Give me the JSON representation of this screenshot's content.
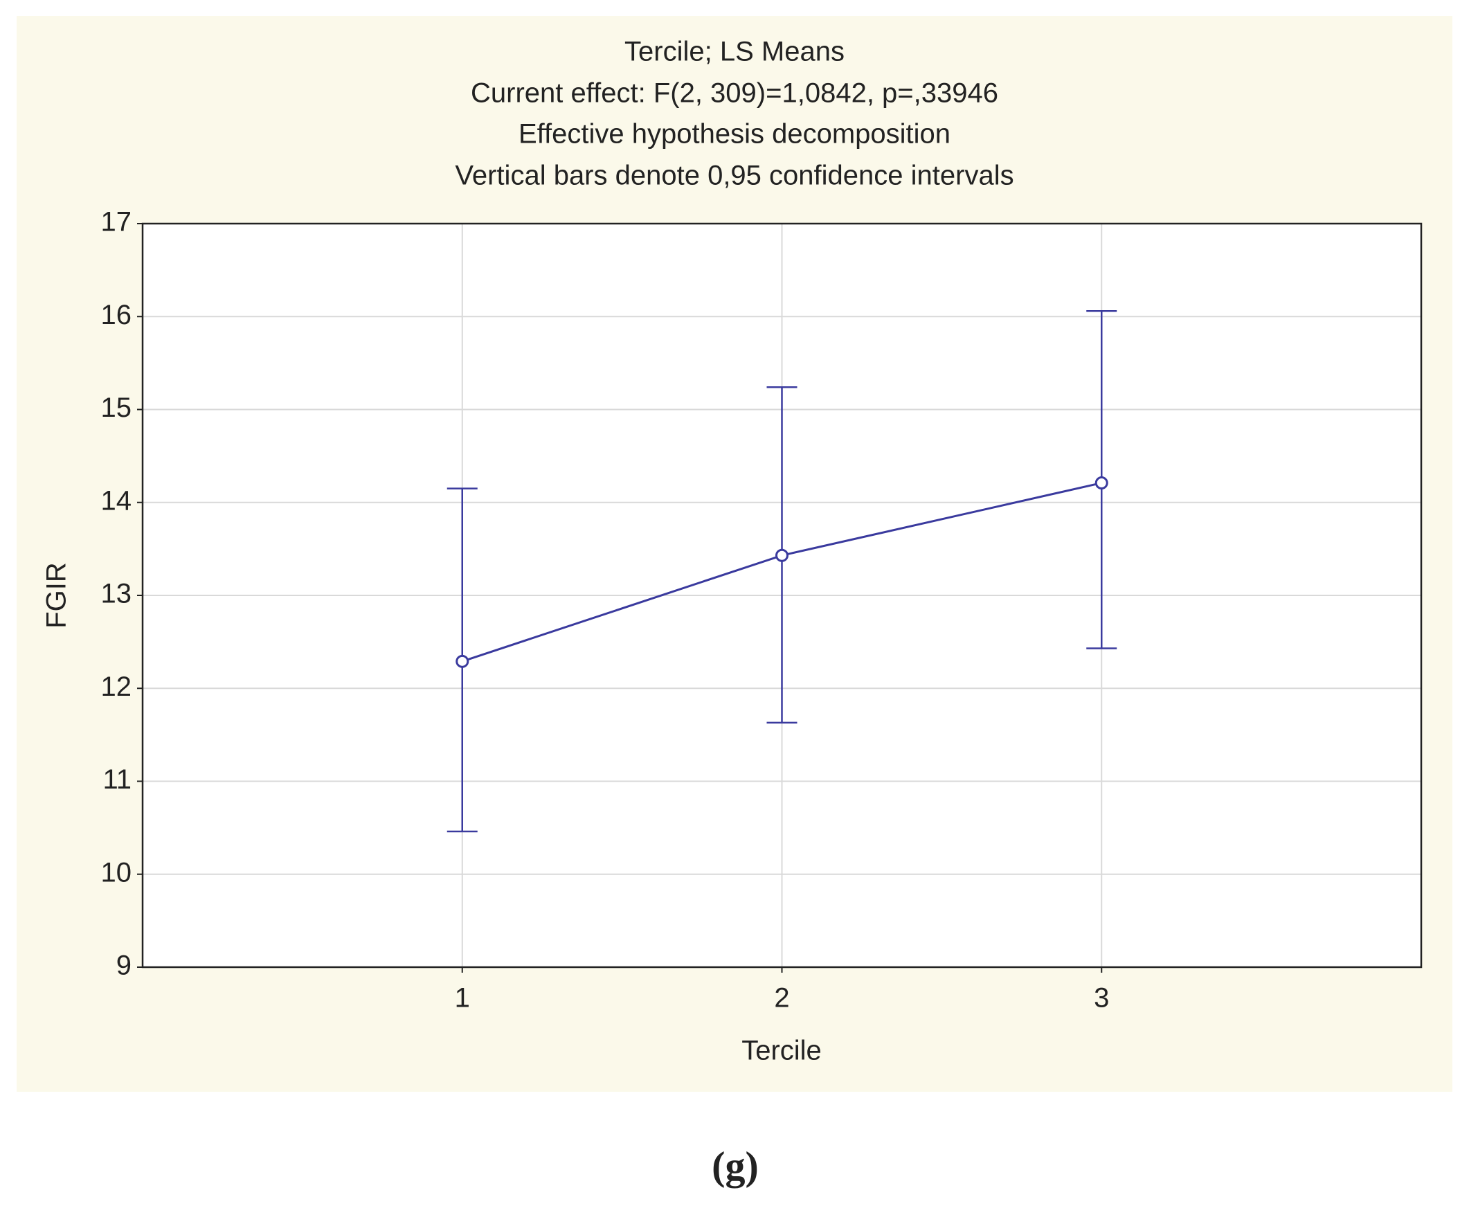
{
  "chart_data": {
    "type": "line",
    "title": "Tercile; LS Means",
    "subtitle": [
      "Current effect: F(2, 309)=1,0842, p=,33946",
      "Effective hypothesis decomposition",
      "Vertical bars denote 0,95 confidence intervals"
    ],
    "xlabel": "Tercile",
    "ylabel": "FGIR",
    "x": [
      1,
      2,
      3
    ],
    "series": [
      {
        "color": "#3a3a9e",
        "values": [
          12.29,
          13.43,
          14.21
        ],
        "lower": [
          10.46,
          11.63,
          12.43
        ],
        "upper": [
          14.15,
          15.24,
          16.06
        ]
      }
    ],
    "xlim": [
      0,
      4
    ],
    "xticks": [
      1,
      2,
      3
    ],
    "ylim": [
      9,
      17
    ],
    "yticks": [
      9,
      10,
      11,
      12,
      13,
      14,
      15,
      16,
      17
    ],
    "grid": true
  },
  "caption": "(g)"
}
